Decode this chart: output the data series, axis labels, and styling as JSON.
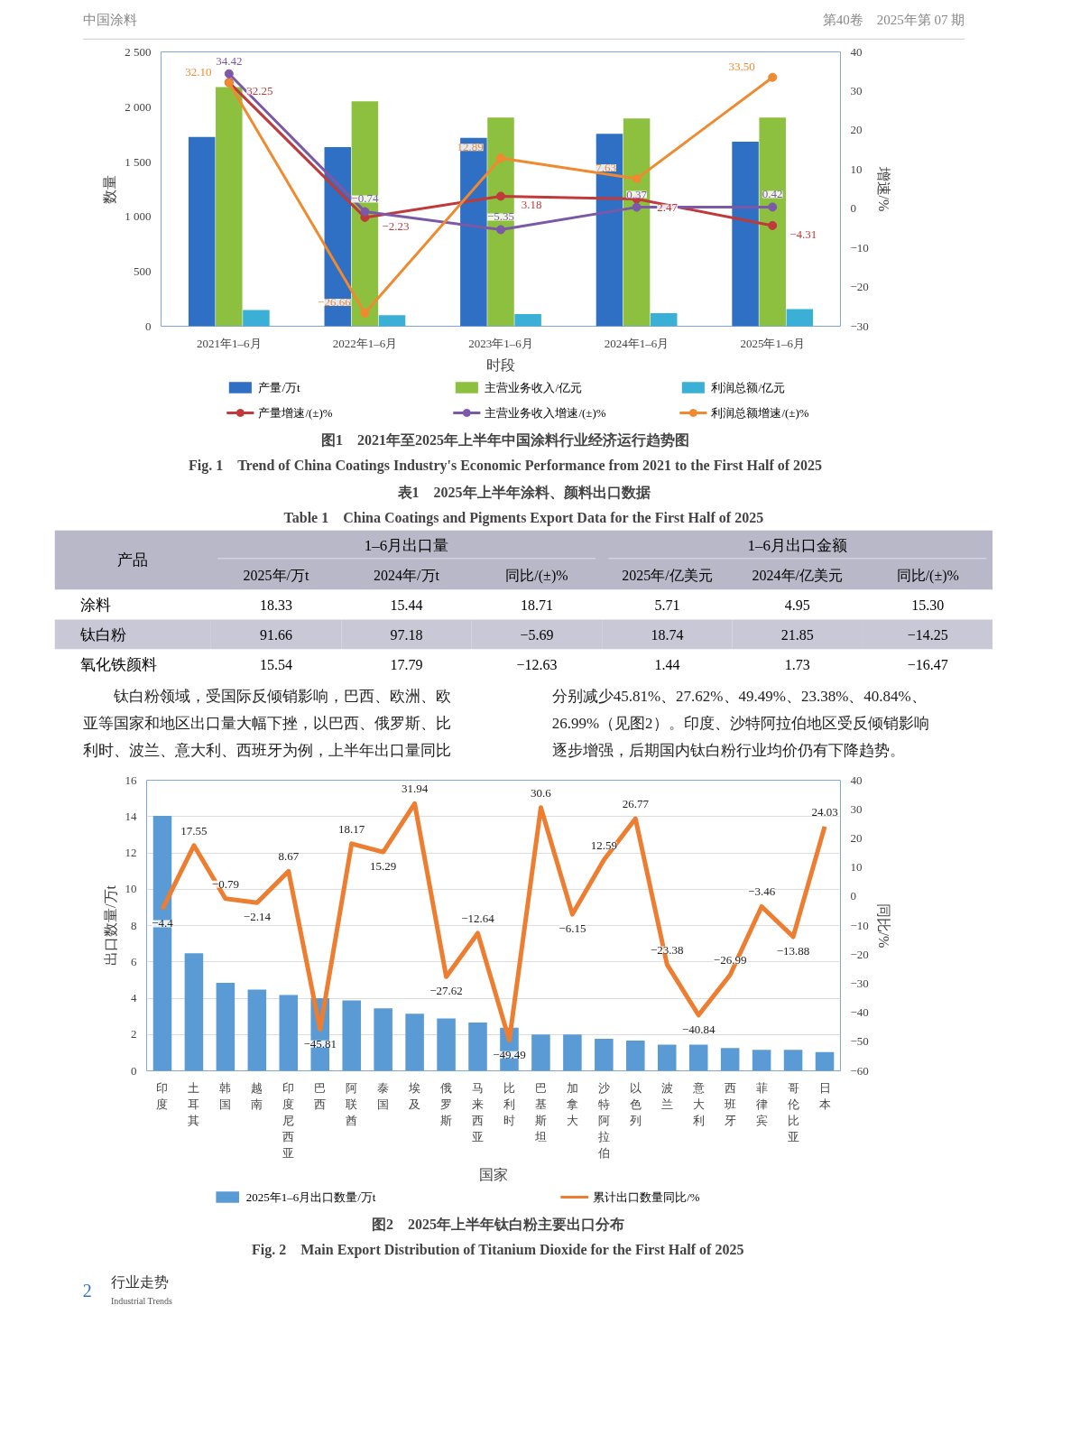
{
  "chart_data": [
    {
      "type": "other",
      "annotations": [
        "中国涂料",
        "第40卷　2025年第 07 期"
      ]
    },
    {
      "type": "bar",
      "title": "图1　2021年至2025年上半年中国涂料行业经济运行趋势图",
      "subtitle": "Fig. 1　Trend of China Coatings Industry's Economic Performance from 2021 to the First Half of 2025",
      "xlabel": "时段",
      "ylabel": "数量",
      "y2label": "增速/%",
      "categories": [
        "2021年1–6月",
        "2022年1–6月",
        "2023年1–6月",
        "2024年1–6月",
        "2025年1–6月"
      ],
      "series": [
        {
          "name": "产量/万t",
          "color": "#2f6fc4",
          "values": [
            1725,
            1633,
            1717,
            1754,
            1681
          ]
        },
        {
          "name": "主营业务收入/亿元",
          "color": "#8dc03f",
          "values": [
            2179,
            2050,
            1902,
            1894,
            1902
          ]
        },
        {
          "name": "利润总额/亿元",
          "color": "#3bb0d6",
          "values": [
            148,
            100,
            112,
            120,
            156
          ]
        },
        {
          "name": "产量增速/(±)%",
          "type": "line",
          "axis": "y2",
          "color": "#c0393b",
          "values": [
            32.25,
            -2.23,
            3.18,
            2.47,
            -4.31
          ],
          "value_labels": [
            "32.25",
            "−2.23",
            "3.18",
            "2.47",
            "−4.31"
          ]
        },
        {
          "name": "主营业务收入增速/(±)%",
          "type": "line",
          "axis": "y2",
          "color": "#7b59a8",
          "values": [
            34.42,
            -0.74,
            -5.35,
            0.37,
            0.42
          ],
          "value_labels": [
            "34.42",
            "−0.74",
            "−5.35",
            "0.37",
            "0.42"
          ]
        },
        {
          "name": "利润总额增速/(±)%",
          "type": "line",
          "axis": "y2",
          "color": "#f08a30",
          "values": [
            32.1,
            -26.66,
            12.89,
            7.63,
            33.5
          ],
          "value_labels": [
            "32.10",
            "−26.66",
            "12.89",
            "7.63",
            "33.50"
          ]
        }
      ],
      "ylim": [
        0,
        2500
      ],
      "yticks": [
        0,
        500,
        {
          "value": 1000,
          "label": "1 000"
        },
        {
          "value": 1500,
          "label": "1 500"
        },
        {
          "value": 2000,
          "label": "2 000"
        },
        {
          "value": 2500,
          "label": "2 500"
        }
      ],
      "y2lim": [
        -30,
        40
      ],
      "y2ticks": [
        {
          "value": -30,
          "label": "−30"
        },
        {
          "value": -20,
          "label": "−20"
        },
        {
          "value": -10,
          "label": "−10"
        },
        0,
        10,
        20,
        30,
        40
      ],
      "marker": "circle",
      "legend": "bottom"
    },
    {
      "type": "heatmap",
      "title": "表1　2025年上半年涂料、颜料出口数据",
      "subtitle": "Table 1　China Coatings and Pigments Export Data for the First Half of 2025",
      "categories": [
        "2025年/万t",
        "2024年/万t",
        "同比/(±)%",
        "2025年/亿美元",
        "2024年/亿美元",
        "同比/(±)%"
      ],
      "y_categories": [
        "涂料",
        "钛白粉",
        "氧化铁颜料"
      ],
      "cells": [
        [
          18.33,
          15.44,
          18.71,
          5.71,
          4.95,
          15.3
        ],
        [
          91.66,
          97.18,
          -5.69,
          18.74,
          21.85,
          -14.25
        ],
        [
          15.54,
          17.79,
          -12.63,
          1.44,
          1.73,
          -16.47
        ]
      ],
      "cell_labels": [
        [
          "18.33",
          "15.44",
          "18.71",
          "5.71",
          "4.95",
          "15.30"
        ],
        [
          "91.66",
          "97.18",
          "−5.69",
          "18.74",
          "21.85",
          "−14.25"
        ],
        [
          "15.54",
          "17.79",
          "−12.63",
          "1.44",
          "1.73",
          "−16.47"
        ]
      ],
      "annotations": [
        "产品",
        "1–6月出口量",
        "1–6月出口金额"
      ]
    },
    {
      "type": "other",
      "annotations": [
        "钛白粉领域，受国际反倾销影响，巴西、欧洲、欧",
        "亚等国家和地区出口量大幅下挫，以巴西、俄罗斯、比",
        "利时、波兰、意大利、西班牙为例，上半年出口量同比",
        "分别减少45.81%、27.62%、49.49%、23.38%、40.84%、",
        "26.99%（见图2）。印度、沙特阿拉伯地区受反倾销影响",
        "逐步增强，后期国内钛白粉行业均价仍有下降趋势。"
      ]
    },
    {
      "type": "bar",
      "title": "图2　2025年上半年钛白粉主要出口分布",
      "subtitle": "Fig. 2　Main Export Distribution of Titanium Dioxide for the First Half of 2025",
      "xlabel": "国家",
      "ylabel": "出口数量/万t",
      "y2label": "同比/%",
      "categories": [
        "印度",
        "土耳其",
        "韩国",
        "越南",
        "印度尼西亚",
        "巴西",
        "阿联酋",
        "泰国",
        "埃及",
        "俄罗斯",
        "马来西亚",
        "比利时",
        "巴基斯坦",
        "加拿大",
        "沙特阿拉伯",
        "以色列",
        "波兰",
        "意大利",
        "西班牙",
        "菲律宾",
        "哥伦比亚",
        "日本"
      ],
      "series": [
        {
          "name": "2025年1–6月出口数量/万t",
          "color": "#5b9bd5",
          "values": [
            14.04,
            6.47,
            4.84,
            4.47,
            4.18,
            4.0,
            3.88,
            3.44,
            3.14,
            2.88,
            2.66,
            2.37,
            2.0,
            2.0,
            1.77,
            1.66,
            1.44,
            1.44,
            1.26,
            1.15,
            1.15,
            1.03
          ]
        },
        {
          "name": "累计出口数量同比/%",
          "type": "line",
          "axis": "y2",
          "color": "#ed7d31",
          "values": [
            -4.4,
            17.55,
            -0.79,
            -2.14,
            8.67,
            -45.81,
            18.17,
            15.29,
            31.94,
            -27.62,
            -12.64,
            -49.49,
            30.6,
            -6.15,
            12.59,
            26.77,
            -23.38,
            -40.84,
            -26.99,
            -3.46,
            -13.88,
            24.03
          ],
          "value_labels": [
            "−4.4",
            "17.55",
            "−0.79",
            "−2.14",
            "8.67",
            "−45.81",
            "18.17",
            "15.29",
            "31.94",
            "−27.62",
            "−12.64",
            "−49.49",
            "30.6",
            "−6.15",
            "12.59",
            "26.77",
            "−23.38",
            "−40.84",
            "−26.99",
            "−3.46",
            "−13.88",
            "24.03"
          ]
        }
      ],
      "ylim": [
        0,
        16
      ],
      "yticks": [
        0,
        2,
        4,
        6,
        8,
        10,
        12,
        14,
        16
      ],
      "y2lim": [
        -60,
        40
      ],
      "y2ticks": [
        {
          "value": -60,
          "label": "−60"
        },
        {
          "value": -50,
          "label": "−50"
        },
        {
          "value": -40,
          "label": "−40"
        },
        {
          "value": -30,
          "label": "−30"
        },
        {
          "value": -20,
          "label": "−20"
        },
        {
          "value": -10,
          "label": "−10"
        },
        0,
        10,
        20,
        30,
        40
      ],
      "grid": "y",
      "legend": "bottom"
    },
    {
      "type": "other",
      "annotations": [
        "2",
        "行业走势",
        "Industrial Trends"
      ]
    }
  ]
}
